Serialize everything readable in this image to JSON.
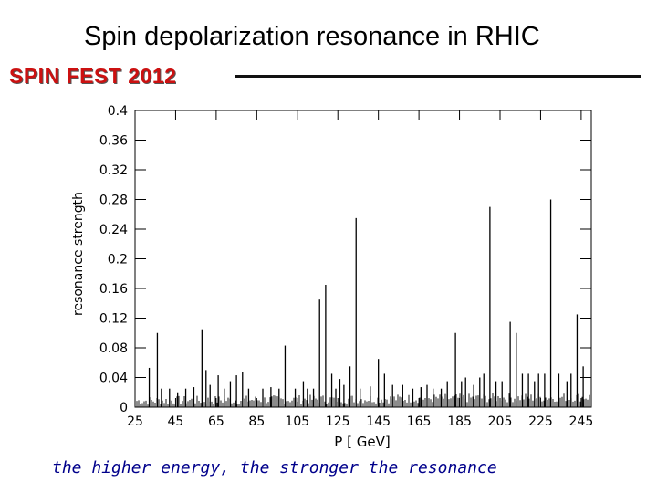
{
  "slide": {
    "title": "Spin depolarization resonance in RHIC",
    "brand": "SPIN FEST 2012",
    "caption": "the higher energy, the stronger the resonance"
  },
  "chart_data": {
    "type": "bar",
    "title": "",
    "xlabel": "P [ GeV]",
    "ylabel": "resonance strength",
    "xlim": [
      25,
      250
    ],
    "ylim": [
      0,
      0.4
    ],
    "x_ticks": [
      25,
      45,
      65,
      85,
      105,
      125,
      145,
      165,
      185,
      205,
      225,
      245
    ],
    "y_ticks": [
      "0",
      "0.04",
      "0.08",
      "0.12",
      "0.16",
      "0.2",
      "0.24",
      "0.28",
      "0.32",
      "0.36",
      "0.4"
    ],
    "grid": false,
    "colors": {
      "bars": "#000000",
      "caption": "#00008b",
      "brand": "#cc1111"
    },
    "series": [
      {
        "x": [
          32,
          36,
          38,
          42,
          46,
          50,
          54,
          58,
          60,
          62,
          66,
          69,
          72,
          75,
          78,
          81,
          88,
          92,
          96,
          99,
          104,
          108,
          110,
          113,
          116,
          119,
          122,
          124,
          126,
          128,
          131,
          134,
          136,
          141,
          145,
          148,
          152,
          157,
          162,
          166,
          169,
          172,
          176,
          179,
          183,
          186,
          188,
          192,
          195,
          197,
          200,
          203,
          206,
          210,
          213,
          216,
          219,
          222,
          224,
          227,
          230,
          234,
          238,
          240,
          243,
          246
        ],
        "values": [
          0.053,
          0.1,
          0.025,
          0.025,
          0.02,
          0.025,
          0.027,
          0.105,
          0.05,
          0.03,
          0.043,
          0.025,
          0.035,
          0.043,
          0.048,
          0.025,
          0.025,
          0.027,
          0.025,
          0.083,
          0.025,
          0.035,
          0.025,
          0.025,
          0.145,
          0.165,
          0.045,
          0.025,
          0.038,
          0.03,
          0.055,
          0.255,
          0.025,
          0.028,
          0.065,
          0.045,
          0.03,
          0.03,
          0.025,
          0.027,
          0.03,
          0.025,
          0.025,
          0.035,
          0.1,
          0.035,
          0.04,
          0.03,
          0.04,
          0.045,
          0.27,
          0.035,
          0.035,
          0.115,
          0.1,
          0.045,
          0.045,
          0.035,
          0.045,
          0.045,
          0.28,
          0.045,
          0.035,
          0.045,
          0.125,
          0.055
        ]
      }
    ]
  }
}
